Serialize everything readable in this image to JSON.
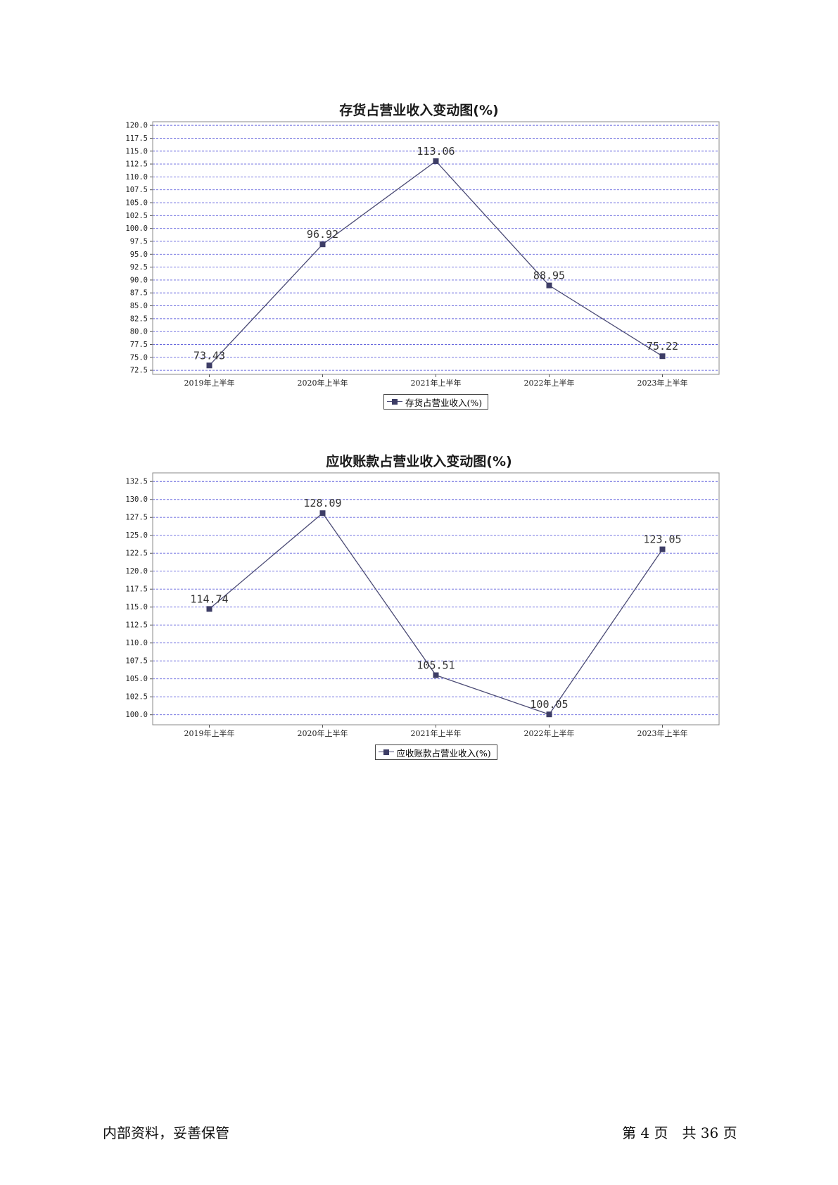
{
  "chart_data": [
    {
      "type": "line",
      "title": "存货占营业收入变动图(%)",
      "categories": [
        "2019年上半年",
        "2020年上半年",
        "2021年上半年",
        "2022年上半年",
        "2023年上半年"
      ],
      "series": [
        {
          "name": "存货占营业收入(%)",
          "values": [
            73.43,
            96.92,
            113.06,
            88.95,
            75.22
          ]
        }
      ],
      "value_labels": [
        "73.43",
        "96.92",
        "113.06",
        "88.95",
        "75.22"
      ],
      "yticks": [
        "72.5",
        "75.0",
        "77.5",
        "80.0",
        "82.5",
        "85.0",
        "87.5",
        "90.0",
        "92.5",
        "95.0",
        "97.5",
        "100.0",
        "102.5",
        "105.0",
        "107.5",
        "110.0",
        "112.5",
        "115.0",
        "117.5",
        "120.0"
      ],
      "ylim": [
        71.7,
        120.7
      ],
      "grid": true,
      "legend": "bottom-center",
      "color": "#3d3d66"
    },
    {
      "type": "line",
      "title": "应收账款占营业收入变动图(%)",
      "categories": [
        "2019年上半年",
        "2020年上半年",
        "2021年上半年",
        "2022年上半年",
        "2023年上半年"
      ],
      "series": [
        {
          "name": "应收账款占营业收入(%)",
          "values": [
            114.74,
            128.09,
            105.51,
            100.05,
            123.05
          ]
        }
      ],
      "value_labels": [
        "114.74",
        "128.09",
        "105.51",
        "100.05",
        "123.05"
      ],
      "yticks": [
        "100.0",
        "102.5",
        "105.0",
        "107.5",
        "110.0",
        "112.5",
        "115.0",
        "117.5",
        "120.0",
        "122.5",
        "125.0",
        "127.5",
        "130.0",
        "132.5"
      ],
      "ylim": [
        98.6,
        133.7
      ],
      "grid": true,
      "legend": "bottom-center",
      "color": "#3d3d66"
    }
  ],
  "footer": {
    "left": "内部资料，妥善保管",
    "right": "第 4 页　共 36 页"
  }
}
